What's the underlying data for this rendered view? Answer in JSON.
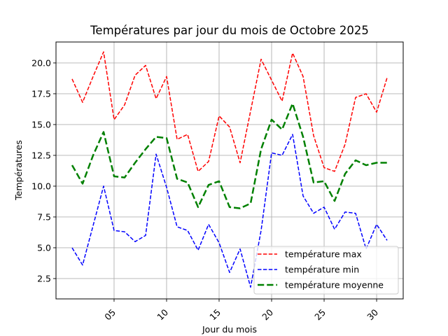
{
  "chart_data": {
    "type": "line",
    "title": "Températures par jour du mois de Octobre 2025",
    "xlabel": "Jour du mois",
    "ylabel": "Températures",
    "x": [
      1,
      2,
      3,
      4,
      5,
      6,
      7,
      8,
      9,
      10,
      11,
      12,
      13,
      14,
      15,
      16,
      17,
      18,
      19,
      20,
      21,
      22,
      23,
      24,
      25,
      26,
      27,
      28,
      29,
      30,
      31
    ],
    "xlim": [
      -0.53,
      32.53
    ],
    "ylim": [
      0.85,
      21.7
    ],
    "xticks": [
      5,
      10,
      15,
      20,
      25,
      30
    ],
    "xtick_labels": [
      "05",
      "10",
      "15",
      "20",
      "25",
      "30"
    ],
    "xtick_rotation": 45,
    "yticks": [
      2.5,
      5.0,
      7.5,
      10.0,
      12.5,
      15.0,
      17.5,
      20.0
    ],
    "ytick_labels": [
      "2.5",
      "5.0",
      "7.5",
      "10.0",
      "12.5",
      "15.0",
      "17.5",
      "20.0"
    ],
    "grid": true,
    "legend_position": "lower right",
    "series": [
      {
        "name": "température max",
        "color": "#ff0000",
        "linestyle": "dashed",
        "linewidth": 1.5,
        "values": [
          18.7,
          16.8,
          18.9,
          20.9,
          15.4,
          16.6,
          19.0,
          19.8,
          17.1,
          18.9,
          13.8,
          14.2,
          11.2,
          12.0,
          15.7,
          14.8,
          11.9,
          16.1,
          20.3,
          18.6,
          16.9,
          20.8,
          18.9,
          14.1,
          11.5,
          11.2,
          13.4,
          17.2,
          17.5,
          16.0,
          18.8
        ]
      },
      {
        "name": "température min",
        "color": "#0000ff",
        "linestyle": "dashed",
        "linewidth": 1.5,
        "values": [
          5.0,
          3.6,
          6.8,
          10.0,
          6.4,
          6.3,
          5.5,
          6.0,
          12.6,
          9.9,
          6.7,
          6.4,
          4.8,
          6.9,
          5.4,
          3.0,
          4.9,
          1.8,
          6.4,
          12.7,
          12.5,
          14.2,
          9.2,
          7.8,
          8.3,
          6.5,
          7.9,
          7.8,
          4.9,
          6.9,
          5.6
        ]
      },
      {
        "name": "température moyenne",
        "color": "#008000",
        "linestyle": "dashed",
        "linewidth": 2.5,
        "values": [
          11.7,
          10.2,
          12.5,
          14.4,
          10.8,
          10.7,
          11.9,
          13.0,
          14.0,
          13.9,
          10.6,
          10.3,
          8.3,
          10.1,
          10.4,
          8.3,
          8.2,
          8.6,
          13.0,
          15.4,
          14.6,
          16.7,
          14.0,
          10.3,
          10.4,
          8.8,
          11.0,
          12.1,
          11.7,
          11.9,
          11.9
        ]
      }
    ]
  }
}
